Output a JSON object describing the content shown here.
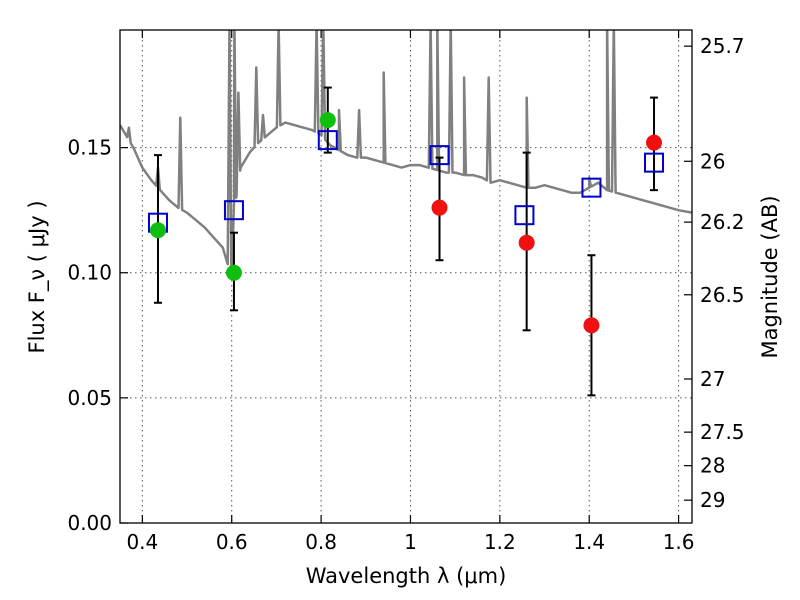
{
  "colors": {
    "spectrum": "#808080",
    "observed_detection": "#0fbf0f",
    "observed_upperlimit": "#f01010",
    "model_marker": "#0000cc",
    "errorbar": "#000000",
    "grid": "#555555",
    "background": "#ffffff"
  },
  "chart_data": {
    "type": "scatter",
    "title": "",
    "xlabel": "Wavelength  λ (μm)",
    "ylabel": "Flux  F_ν  ( μJy )",
    "ylabel_right": "Magnitude (AB)",
    "xlim": [
      0.35,
      1.63
    ],
    "ylim": [
      0.0,
      0.197
    ],
    "grid": true,
    "legend": "none",
    "x_ticks": [
      0.4,
      0.6,
      0.8,
      1.0,
      1.2,
      1.4,
      1.6
    ],
    "x_tick_labels": [
      "0.4",
      "0.6",
      "0.8",
      "1",
      "1.2",
      "1.4",
      "1.6"
    ],
    "y_ticks": [
      0.0,
      0.05,
      0.1,
      0.15
    ],
    "y_tick_labels": [
      "0.00",
      "0.05",
      "0.10",
      "0.15"
    ],
    "right_ticks": [
      {
        "label": "25.7",
        "mag": 25.7
      },
      {
        "label": "26",
        "mag": 26.0
      },
      {
        "label": "26.2",
        "mag": 26.2
      },
      {
        "label": "26.5",
        "mag": 26.5
      },
      {
        "label": "27",
        "mag": 27.0
      },
      {
        "label": "27.5",
        "mag": 27.5
      },
      {
        "label": "28",
        "mag": 28.0
      },
      {
        "label": "29",
        "mag": 29.0
      }
    ],
    "model_spectrum": {
      "continuum": [
        [
          0.35,
          0.159
        ],
        [
          0.38,
          0.15
        ],
        [
          0.4,
          0.142
        ],
        [
          0.42,
          0.137
        ],
        [
          0.44,
          0.133
        ],
        [
          0.46,
          0.129
        ],
        [
          0.48,
          0.126
        ],
        [
          0.5,
          0.124
        ],
        [
          0.52,
          0.121
        ],
        [
          0.54,
          0.118
        ],
        [
          0.56,
          0.114
        ],
        [
          0.58,
          0.11
        ],
        [
          0.59,
          0.104
        ],
        [
          0.6,
          0.098
        ],
        [
          0.605,
          0.128
        ],
        [
          0.61,
          0.13
        ],
        [
          0.62,
          0.142
        ],
        [
          0.64,
          0.148
        ],
        [
          0.66,
          0.152
        ],
        [
          0.68,
          0.155
        ],
        [
          0.7,
          0.158
        ],
        [
          0.72,
          0.16
        ],
        [
          0.74,
          0.159
        ],
        [
          0.76,
          0.158
        ],
        [
          0.78,
          0.157
        ],
        [
          0.8,
          0.155
        ],
        [
          0.82,
          0.151
        ],
        [
          0.84,
          0.149
        ],
        [
          0.86,
          0.147
        ],
        [
          0.88,
          0.146
        ],
        [
          0.9,
          0.146
        ],
        [
          0.92,
          0.145
        ],
        [
          0.94,
          0.144
        ],
        [
          0.96,
          0.143
        ],
        [
          0.98,
          0.142
        ],
        [
          1.0,
          0.143
        ],
        [
          1.02,
          0.143
        ],
        [
          1.04,
          0.142
        ],
        [
          1.06,
          0.141
        ],
        [
          1.08,
          0.14
        ],
        [
          1.1,
          0.14
        ],
        [
          1.12,
          0.139
        ],
        [
          1.14,
          0.139
        ],
        [
          1.16,
          0.138
        ],
        [
          1.18,
          0.136
        ],
        [
          1.2,
          0.137
        ],
        [
          1.22,
          0.136
        ],
        [
          1.24,
          0.135
        ],
        [
          1.26,
          0.134
        ],
        [
          1.28,
          0.134
        ],
        [
          1.3,
          0.135
        ],
        [
          1.32,
          0.134
        ],
        [
          1.34,
          0.133
        ],
        [
          1.36,
          0.132
        ],
        [
          1.38,
          0.132
        ],
        [
          1.4,
          0.134
        ],
        [
          1.42,
          0.136
        ],
        [
          1.44,
          0.133
        ],
        [
          1.46,
          0.132
        ],
        [
          1.48,
          0.131
        ],
        [
          1.5,
          0.13
        ],
        [
          1.52,
          0.129
        ],
        [
          1.54,
          0.128
        ],
        [
          1.56,
          0.127
        ],
        [
          1.58,
          0.126
        ],
        [
          1.6,
          0.125
        ],
        [
          1.63,
          0.124
        ]
      ],
      "emission_lines": [
        {
          "x": 0.37,
          "peak": 0.158
        },
        {
          "x": 0.435,
          "peak": 0.142
        },
        {
          "x": 0.485,
          "peak": 0.162
        },
        {
          "x": 0.595,
          "peak": 0.2
        },
        {
          "x": 0.606,
          "peak": 0.2
        },
        {
          "x": 0.615,
          "peak": 0.172
        },
        {
          "x": 0.655,
          "peak": 0.182
        },
        {
          "x": 0.67,
          "peak": 0.163
        },
        {
          "x": 0.705,
          "peak": 0.2
        },
        {
          "x": 0.79,
          "peak": 0.2
        },
        {
          "x": 0.805,
          "peak": 0.2
        },
        {
          "x": 0.84,
          "peak": 0.165
        },
        {
          "x": 0.885,
          "peak": 0.165
        },
        {
          "x": 0.94,
          "peak": 0.18
        },
        {
          "x": 1.045,
          "peak": 0.2
        },
        {
          "x": 1.06,
          "peak": 0.2
        },
        {
          "x": 1.09,
          "peak": 0.2
        },
        {
          "x": 1.12,
          "peak": 0.178
        },
        {
          "x": 1.175,
          "peak": 0.178
        },
        {
          "x": 1.26,
          "peak": 0.17
        },
        {
          "x": 1.4,
          "peak": 0.138
        },
        {
          "x": 1.44,
          "peak": 0.2
        },
        {
          "x": 1.455,
          "peak": 0.2
        }
      ]
    },
    "series": [
      {
        "marker": "open-square",
        "color": "#0000cc",
        "points": [
          {
            "x": 0.435,
            "y": 0.12
          },
          {
            "x": 0.605,
            "y": 0.125
          },
          {
            "x": 0.815,
            "y": 0.153
          },
          {
            "x": 1.065,
            "y": 0.147
          },
          {
            "x": 1.255,
            "y": 0.123
          },
          {
            "x": 1.405,
            "y": 0.134
          },
          {
            "x": 1.545,
            "y": 0.144
          }
        ]
      },
      {
        "marker": "filled-circle",
        "color": "#0fbf0f",
        "points": [
          {
            "x": 0.435,
            "y": 0.117,
            "yerr_low": 0.088,
            "yerr_high": 0.147
          },
          {
            "x": 0.605,
            "y": 0.1,
            "yerr_low": 0.085,
            "yerr_high": 0.116
          },
          {
            "x": 0.815,
            "y": 0.161,
            "yerr_low": 0.148,
            "yerr_high": 0.174
          }
        ]
      },
      {
        "marker": "filled-circle",
        "color": "#f01010",
        "points": [
          {
            "x": 1.065,
            "y": 0.126,
            "yerr_low": 0.105,
            "yerr_high": 0.146
          },
          {
            "x": 1.26,
            "y": 0.112,
            "yerr_low": 0.077,
            "yerr_high": 0.148
          },
          {
            "x": 1.405,
            "y": 0.079,
            "yerr_low": 0.051,
            "yerr_high": 0.107
          },
          {
            "x": 1.545,
            "y": 0.152,
            "yerr_low": 0.133,
            "yerr_high": 0.17
          }
        ]
      }
    ]
  }
}
